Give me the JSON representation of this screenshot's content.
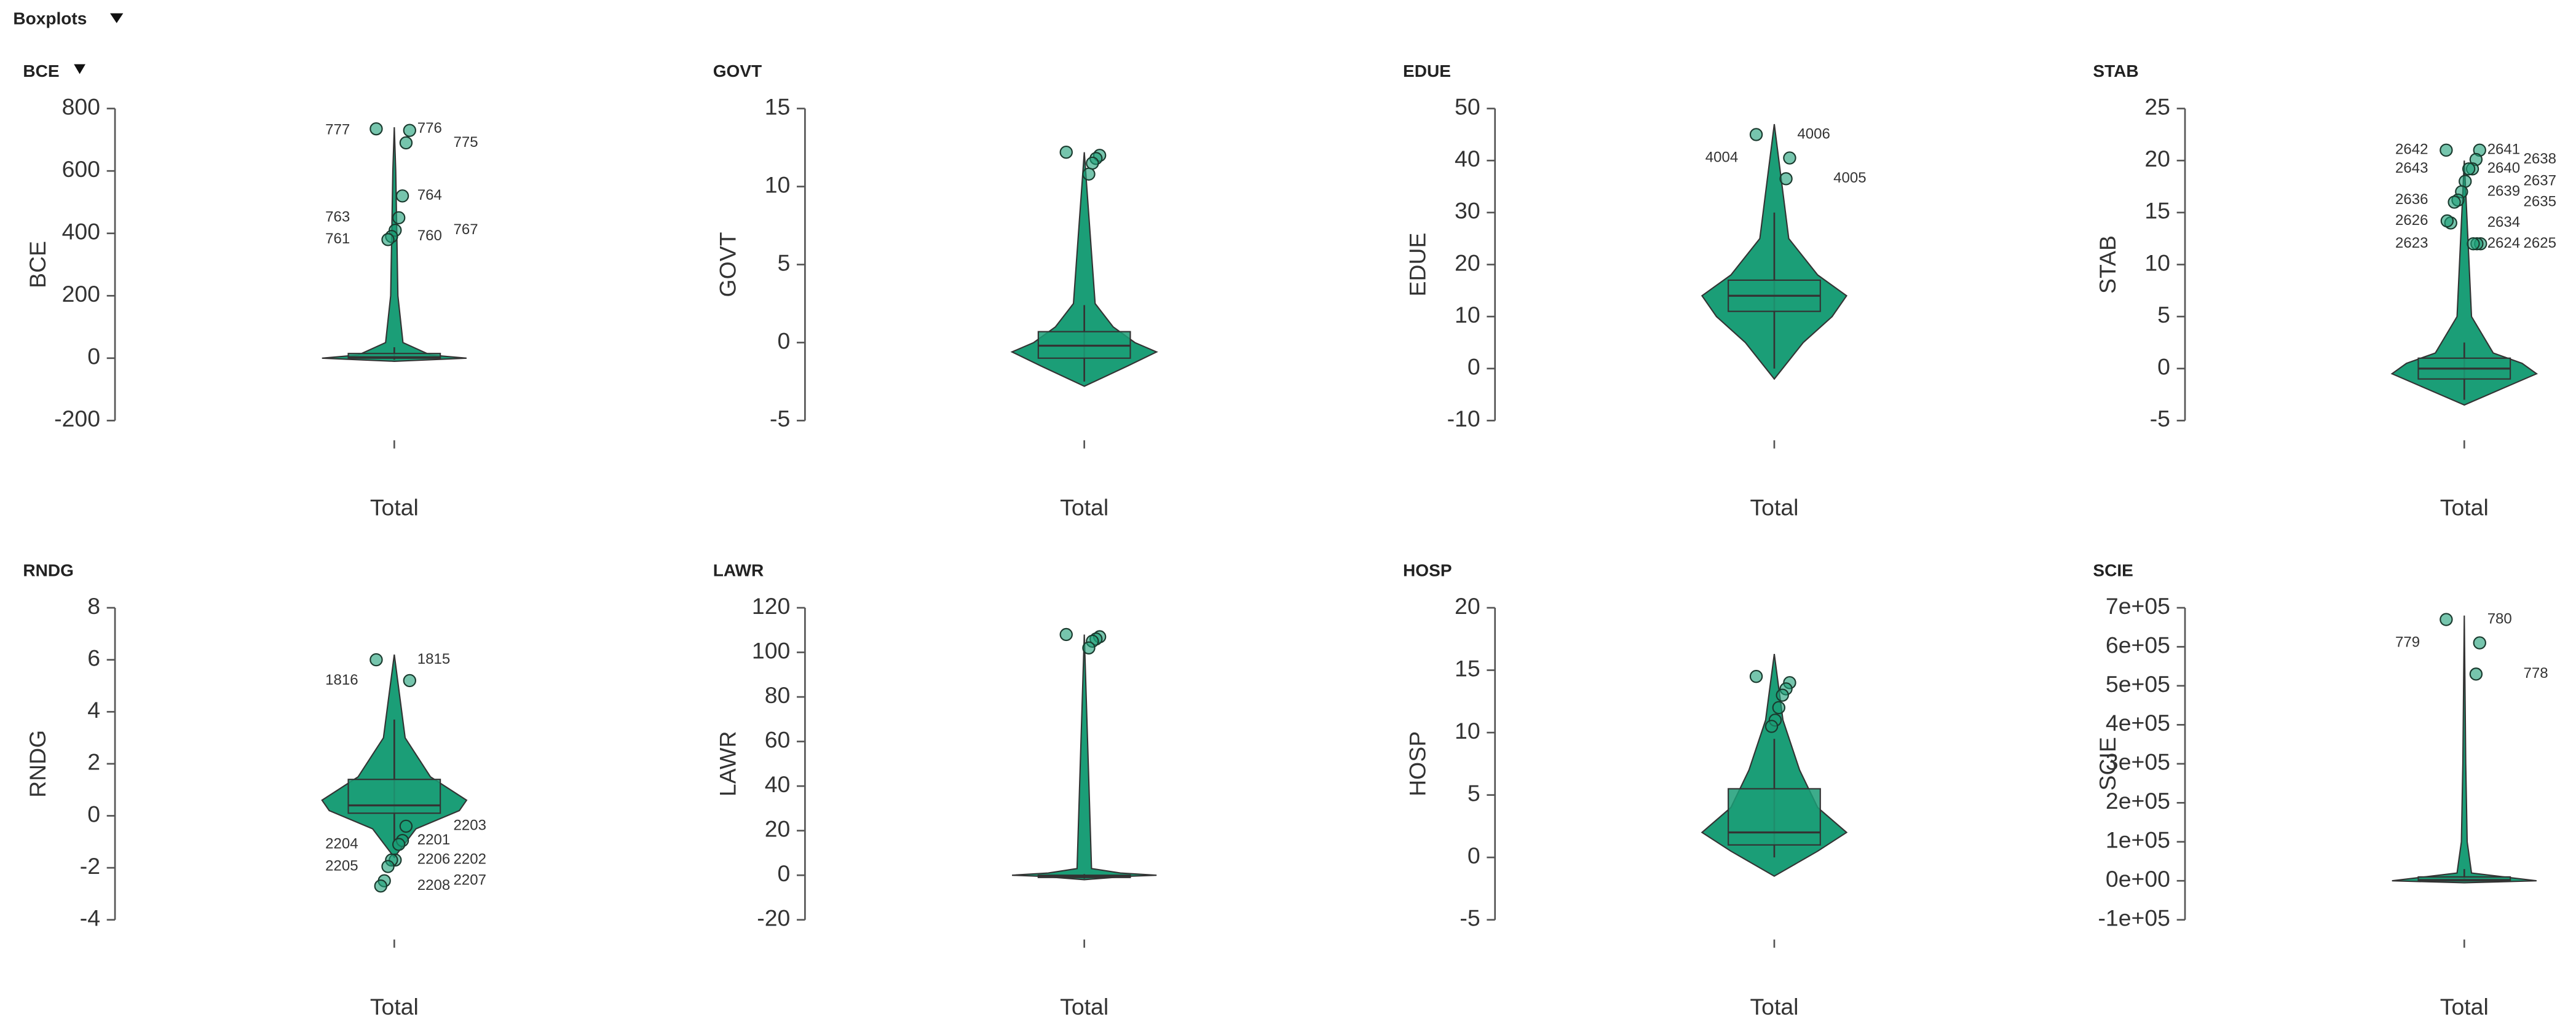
{
  "header": {
    "title": "Boxplots"
  },
  "chart_data": [
    {
      "type": "boxplot",
      "title": "BCE",
      "ylabel": "BCE",
      "categories": [
        "Total"
      ],
      "color": "#1b9e77",
      "ylim": [
        -200,
        800
      ],
      "yticks": [
        -200,
        0,
        200,
        400,
        600,
        800
      ],
      "box": {
        "min": -5,
        "q1": 0,
        "median": 3,
        "q3": 15,
        "max": 35
      },
      "violin": {
        "y": [
          -10,
          0,
          10,
          50,
          200,
          600,
          740
        ],
        "width": [
          0,
          1,
          0.5,
          0.12,
          0.05,
          0.02,
          0
        ]
      },
      "outliers": [
        735,
        730,
        690,
        520,
        450,
        410,
        390,
        380
      ],
      "outlier_labels": [
        "776",
        "777",
        "775",
        "764",
        "763",
        "767",
        "760",
        "761"
      ]
    },
    {
      "type": "boxplot",
      "title": "GOVT",
      "ylabel": "GOVT",
      "categories": [
        "Total"
      ],
      "color": "#1b9e77",
      "ylim": [
        -5,
        15
      ],
      "yticks": [
        -5,
        0,
        5,
        10,
        15
      ],
      "box": {
        "min": -2.5,
        "q1": -1,
        "median": -0.2,
        "q3": 0.7,
        "max": 2.4
      },
      "violin": {
        "y": [
          -2.8,
          -1.5,
          -0.6,
          0,
          1,
          2.5,
          12.2
        ],
        "width": [
          0,
          0.6,
          1,
          0.7,
          0.4,
          0.15,
          0
        ]
      },
      "outliers": [
        12.2,
        12,
        11.8,
        11.5,
        10.8
      ],
      "outlier_labels": [
        null,
        null,
        null,
        null,
        null
      ]
    },
    {
      "type": "boxplot",
      "title": "EDUE",
      "ylabel": "EDUE",
      "categories": [
        "Total"
      ],
      "color": "#1b9e77",
      "ylim": [
        -10,
        50
      ],
      "yticks": [
        -10,
        0,
        10,
        20,
        30,
        40,
        50
      ],
      "box": {
        "min": 0,
        "q1": 11,
        "median": 14,
        "q3": 17,
        "max": 30
      },
      "violin": {
        "y": [
          -2,
          5,
          10,
          14,
          18,
          25,
          47
        ],
        "width": [
          0,
          0.4,
          0.8,
          1,
          0.6,
          0.2,
          0
        ]
      },
      "outliers": [
        45,
        40.5,
        36.5
      ],
      "outlier_labels": [
        "4006",
        "4004",
        "4005"
      ]
    },
    {
      "type": "boxplot",
      "title": "STAB",
      "ylabel": "STAB",
      "categories": [
        "Total"
      ],
      "color": "#1b9e77",
      "ylim": [
        -5,
        25
      ],
      "yticks": [
        -5,
        0,
        5,
        10,
        15,
        20,
        25
      ],
      "box": {
        "min": -3,
        "q1": -1,
        "median": 0,
        "q3": 1,
        "max": 2.5
      },
      "violin": {
        "y": [
          -3.5,
          -2,
          -0.5,
          0.5,
          1.5,
          5,
          20
        ],
        "width": [
          0,
          0.5,
          1,
          0.8,
          0.4,
          0.1,
          0
        ]
      },
      "outliers": [
        21,
        21,
        20.1,
        19.2,
        19.2,
        18,
        17,
        16.2,
        16,
        14,
        14.2,
        12,
        12,
        12
      ],
      "outlier_labels": [
        "2641",
        "2642",
        "2638",
        "2640",
        "2643",
        "2637",
        "2639",
        "2636",
        "2635",
        "2634",
        "2626",
        "2625",
        "2624",
        "2623"
      ]
    },
    {
      "type": "boxplot",
      "title": "RNDG",
      "ylabel": "RNDG",
      "categories": [
        "Total"
      ],
      "color": "#1b9e77",
      "ylim": [
        -4,
        8
      ],
      "yticks": [
        -4,
        -2,
        0,
        2,
        4,
        6,
        8
      ],
      "box": {
        "min": -1,
        "q1": 0.1,
        "median": 0.4,
        "q3": 1.4,
        "max": 3.7
      },
      "violin": {
        "y": [
          -1.6,
          -0.5,
          0.2,
          0.6,
          1.5,
          3,
          6.2
        ],
        "width": [
          0,
          0.3,
          0.9,
          1,
          0.5,
          0.15,
          0
        ]
      },
      "outliers": [
        6.0,
        5.2,
        -0.4,
        -0.95,
        -1.1,
        -1.7,
        -1.7,
        -1.95,
        -2.5,
        -2.7
      ],
      "outlier_labels": [
        "1815",
        "1816",
        "2203",
        "2201",
        "2204",
        "2202",
        "2206",
        "2205",
        "2207",
        "2208"
      ]
    },
    {
      "type": "boxplot",
      "title": "LAWR",
      "ylabel": "LAWR",
      "categories": [
        "Total"
      ],
      "color": "#1b9e77",
      "ylim": [
        -20,
        120
      ],
      "yticks": [
        -20,
        0,
        20,
        40,
        60,
        80,
        100,
        120
      ],
      "box": {
        "min": -1.5,
        "q1": -1,
        "median": -0.5,
        "q3": 0,
        "max": 0.5
      },
      "violin": {
        "y": [
          -2,
          -0.5,
          0,
          1,
          3,
          108
        ],
        "width": [
          0,
          0.6,
          1,
          0.5,
          0.1,
          0
        ]
      },
      "outliers": [
        108,
        107,
        106,
        105,
        102
      ],
      "outlier_labels": [
        null,
        null,
        null,
        null,
        null
      ]
    },
    {
      "type": "boxplot",
      "title": "HOSP",
      "ylabel": "HOSP",
      "categories": [
        "Total"
      ],
      "color": "#1b9e77",
      "ylim": [
        -5,
        20
      ],
      "yticks": [
        -5,
        0,
        5,
        10,
        15,
        20
      ],
      "box": {
        "min": 0,
        "q1": 1,
        "median": 2,
        "q3": 5.5,
        "max": 9.5
      },
      "violin": {
        "y": [
          -1.5,
          0.5,
          2,
          4,
          7,
          11,
          16.3
        ],
        "width": [
          0,
          0.6,
          1,
          0.6,
          0.35,
          0.12,
          0
        ]
      },
      "outliers": [
        14.5,
        14,
        13.5,
        13,
        12,
        11,
        10.5
      ],
      "outlier_labels": [
        null,
        null,
        null,
        null,
        null,
        null,
        null
      ]
    },
    {
      "type": "boxplot",
      "title": "SCIE",
      "ylabel": "SCIE",
      "categories": [
        "Total"
      ],
      "color": "#1b9e77",
      "ylim": [
        -100000,
        700000
      ],
      "yticks": [
        {
          "value": -100000,
          "label": "-1e+05"
        },
        {
          "value": 0,
          "label": "0e+00"
        },
        {
          "value": 100000,
          "label": "1e+05"
        },
        {
          "value": 200000,
          "label": "2e+05"
        },
        {
          "value": 300000,
          "label": "3e+05"
        },
        {
          "value": 400000,
          "label": "4e+05"
        },
        {
          "value": 500000,
          "label": "5e+05"
        },
        {
          "value": 600000,
          "label": "6e+05"
        },
        {
          "value": 700000,
          "label": "7e+05"
        }
      ],
      "box": {
        "min": 0,
        "q1": 0,
        "median": 2000,
        "q3": 10000,
        "max": 30000
      },
      "violin": {
        "y": [
          -5000,
          0,
          20000,
          100000,
          300000,
          680000
        ],
        "width": [
          0,
          1,
          0.1,
          0.04,
          0.02,
          0
        ]
      },
      "outliers": [
        670000,
        610000,
        530000
      ],
      "outlier_labels": [
        "780",
        "779",
        "778"
      ]
    }
  ]
}
